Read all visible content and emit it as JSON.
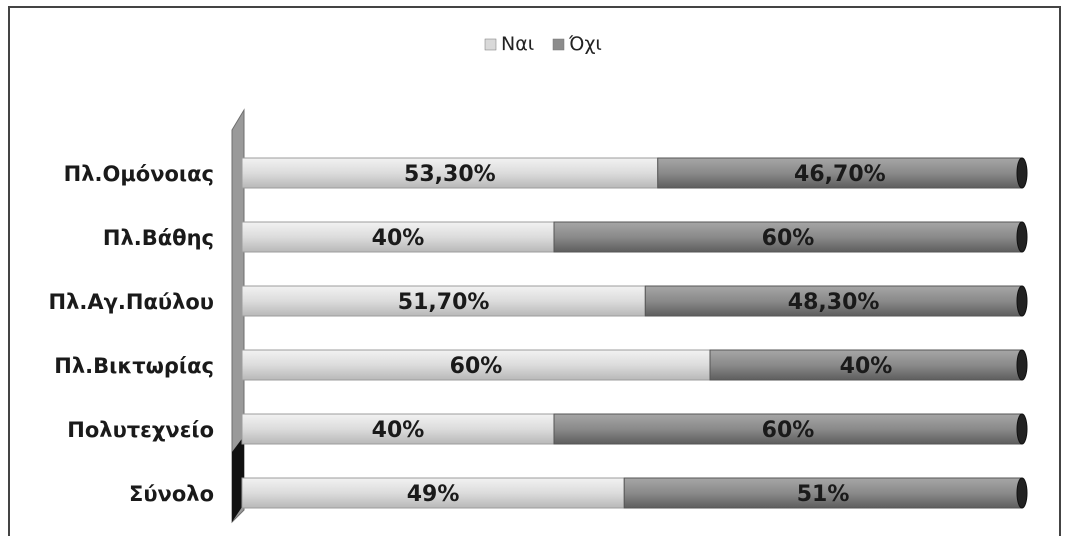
{
  "chart_data": {
    "type": "bar",
    "orientation": "horizontal",
    "stacked": "percent",
    "categories": [
      "Πλ.Ομόνοιας",
      "Πλ.Βάθης",
      "Πλ.Αγ.Παύλου",
      "Πλ.Βικτωρίας",
      "Πολυτεχνείο",
      "Σύνολο"
    ],
    "series": [
      {
        "name": "Ναι",
        "values": [
          53.3,
          40,
          51.7,
          60,
          40,
          49
        ],
        "labels": [
          "53,30%",
          "40%",
          "51,70%",
          "60%",
          "40%",
          "49%"
        ],
        "color": "#d9d9d9"
      },
      {
        "name": "Όχι",
        "values": [
          46.7,
          60,
          48.3,
          40,
          60,
          51
        ],
        "labels": [
          "46,70%",
          "60%",
          "48,30%",
          "40%",
          "60%",
          "51%"
        ],
        "color": "#8c8c8c"
      }
    ],
    "xlim": [
      0,
      100
    ],
    "legend_position": "top",
    "grid": false
  }
}
